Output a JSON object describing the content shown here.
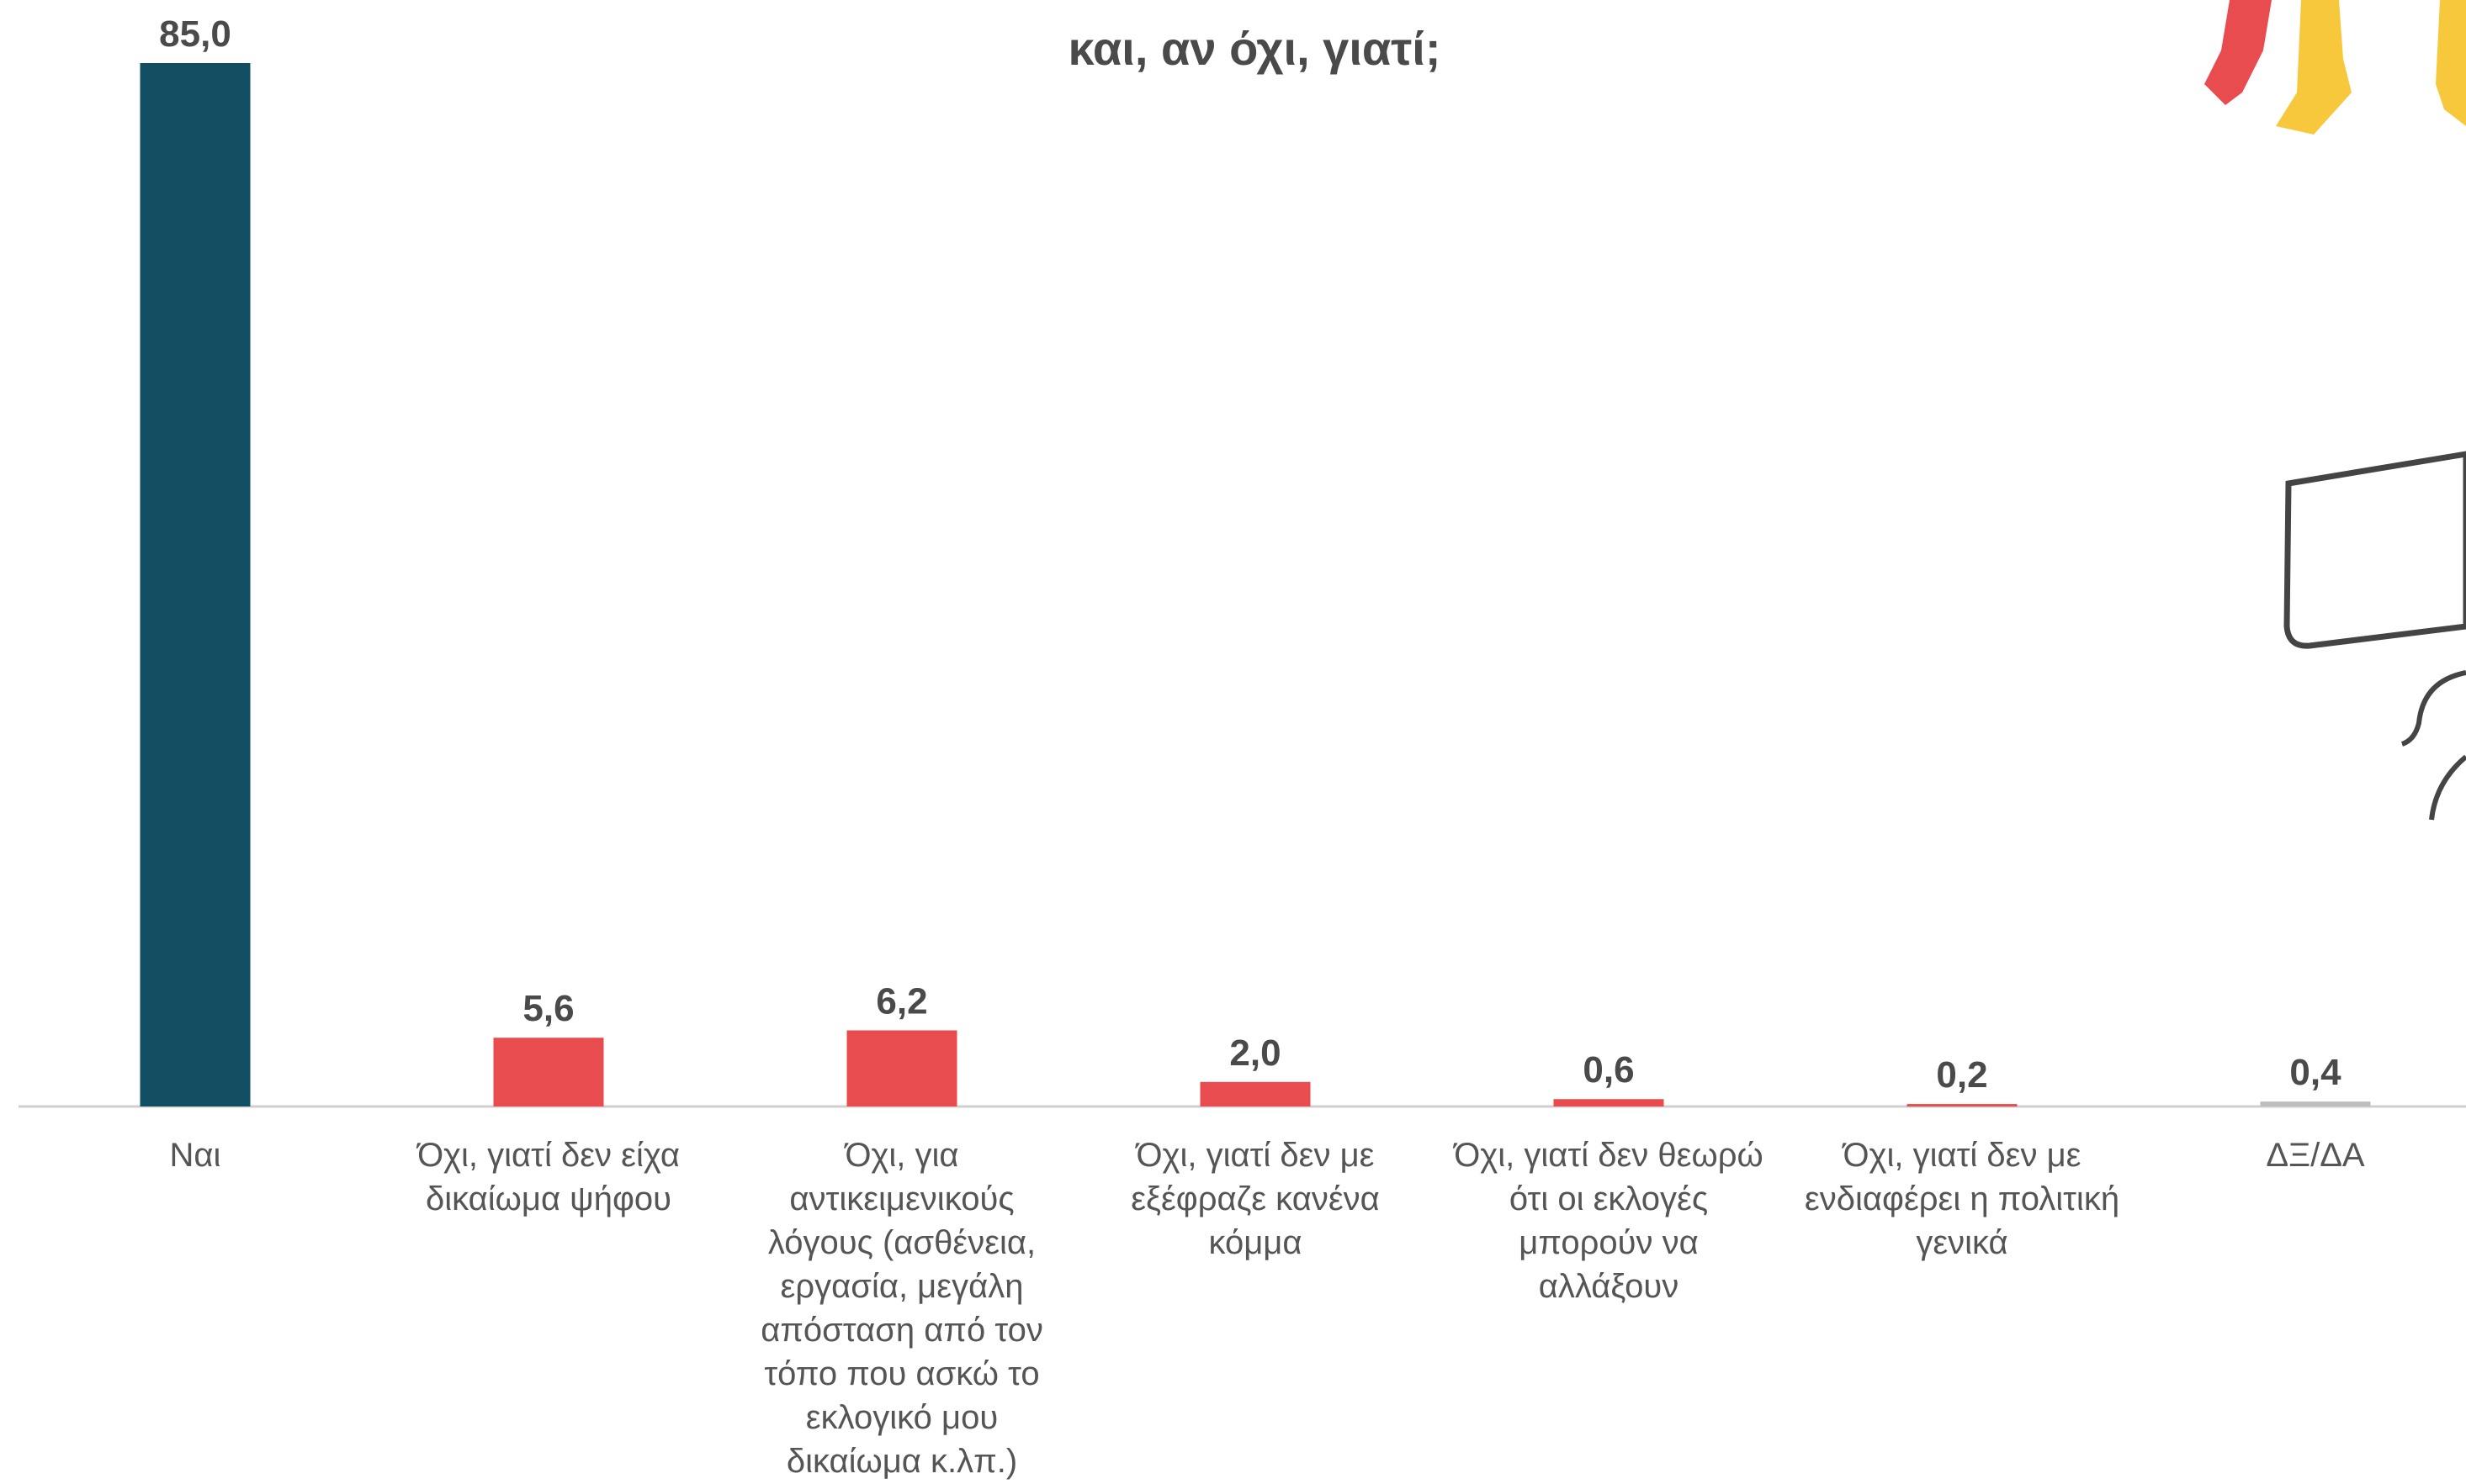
{
  "chart_data": {
    "type": "bar",
    "title": "και, αν όχι, γιατί;",
    "categories": [
      "Ναι",
      "Όχι, γιατί δεν είχα δικαίωμα ψήφου",
      "Όχι, για αντικειμενικούς λόγους (ασθένεια, εργασία, μεγάλη απόσταση από τον τόπο που ασκώ το εκλογικό μου δικαίωμα κ.λπ.)",
      "Όχι, γιατί δεν με εξέφραζε κανένα κόμμα",
      "Όχι, γιατί δεν θεωρώ ότι οι εκλογές μπορούν να αλλάξουν",
      "Όχι, γιατί δεν με ενδιαφέρει η πολιτική γενικά",
      "ΔΞ/ΔΑ"
    ],
    "values": [
      85.0,
      5.6,
      6.2,
      2.0,
      0.6,
      0.2,
      0.4
    ],
    "value_labels": [
      "85,0",
      "5,6",
      "6,2",
      "2,0",
      "0,6",
      "0,2",
      "0,4"
    ],
    "colors": [
      "#124f62",
      "#e84c4f",
      "#e84c4f",
      "#e84c4f",
      "#e84c4f",
      "#e84c4f",
      "#bdbdbd"
    ]
  }
}
